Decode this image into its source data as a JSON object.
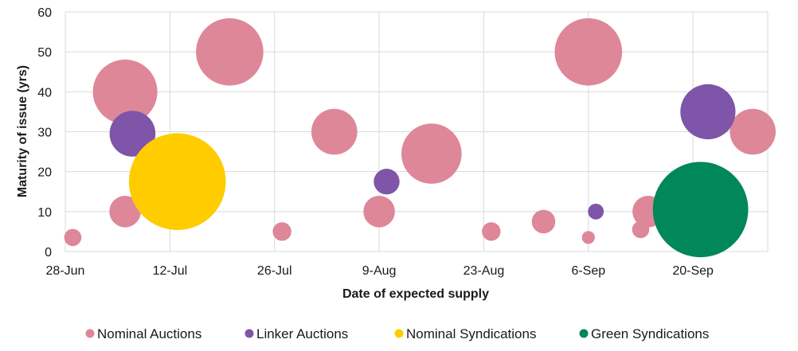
{
  "chart_data": {
    "type": "scatter",
    "subtype": "bubble",
    "xlabel": "Date of expected supply",
    "ylabel": "Maturity of issue (yrs)",
    "x_axis_type": "date",
    "x_ticks": [
      "2021-06-28",
      "2021-07-12",
      "2021-07-26",
      "2021-08-09",
      "2021-08-23",
      "2021-09-06",
      "2021-09-20"
    ],
    "x_tick_labels": [
      "28-Jun",
      "12-Jul",
      "26-Jul",
      "9-Aug",
      "23-Aug",
      "6-Sep",
      "20-Sep"
    ],
    "xlim": [
      "2021-06-28",
      "2021-09-30"
    ],
    "ylim": [
      0,
      60
    ],
    "y_ticks": [
      0,
      10,
      20,
      30,
      40,
      50,
      60
    ],
    "grid": true,
    "legend_position": "bottom",
    "series": [
      {
        "name": "Nominal Auctions",
        "color": "#de8799",
        "points": [
          {
            "x": "2021-06-29",
            "y": 3.5,
            "size": 2.4
          },
          {
            "x": "2021-07-06",
            "y": 40,
            "size": 9
          },
          {
            "x": "2021-07-06",
            "y": 10,
            "size": 4.4
          },
          {
            "x": "2021-07-20",
            "y": 50,
            "size": 9.4
          },
          {
            "x": "2021-07-27",
            "y": 5,
            "size": 2.6
          },
          {
            "x": "2021-08-03",
            "y": 30,
            "size": 6.4
          },
          {
            "x": "2021-08-09",
            "y": 10,
            "size": 4.4
          },
          {
            "x": "2021-08-16",
            "y": 24.5,
            "size": 8.4
          },
          {
            "x": "2021-08-24",
            "y": 5,
            "size": 2.6
          },
          {
            "x": "2021-08-31",
            "y": 7.5,
            "size": 3.3
          },
          {
            "x": "2021-09-06",
            "y": 50,
            "size": 9.4
          },
          {
            "x": "2021-09-06",
            "y": 3.5,
            "size": 1.8
          },
          {
            "x": "2021-09-13",
            "y": 5.5,
            "size": 2.4
          },
          {
            "x": "2021-09-14",
            "y": 10,
            "size": 4.4
          },
          {
            "x": "2021-09-28",
            "y": 30,
            "size": 6.4
          }
        ]
      },
      {
        "name": "Linker Auctions",
        "color": "#7e55a8",
        "points": [
          {
            "x": "2021-07-07",
            "y": 29.5,
            "size": 6.4
          },
          {
            "x": "2021-08-10",
            "y": 17.5,
            "size": 3.6
          },
          {
            "x": "2021-09-07",
            "y": 10,
            "size": 2.2
          },
          {
            "x": "2021-09-22",
            "y": 35,
            "size": 7.7
          }
        ]
      },
      {
        "name": "Nominal Syndications",
        "color": "#ffcc00",
        "points": [
          {
            "x": "2021-07-13",
            "y": 17.5,
            "size": 13.5
          }
        ]
      },
      {
        "name": "Green Syndications",
        "color": "#00875a",
        "points": [
          {
            "x": "2021-09-21",
            "y": 10.5,
            "size": 13.3
          }
        ]
      }
    ]
  }
}
